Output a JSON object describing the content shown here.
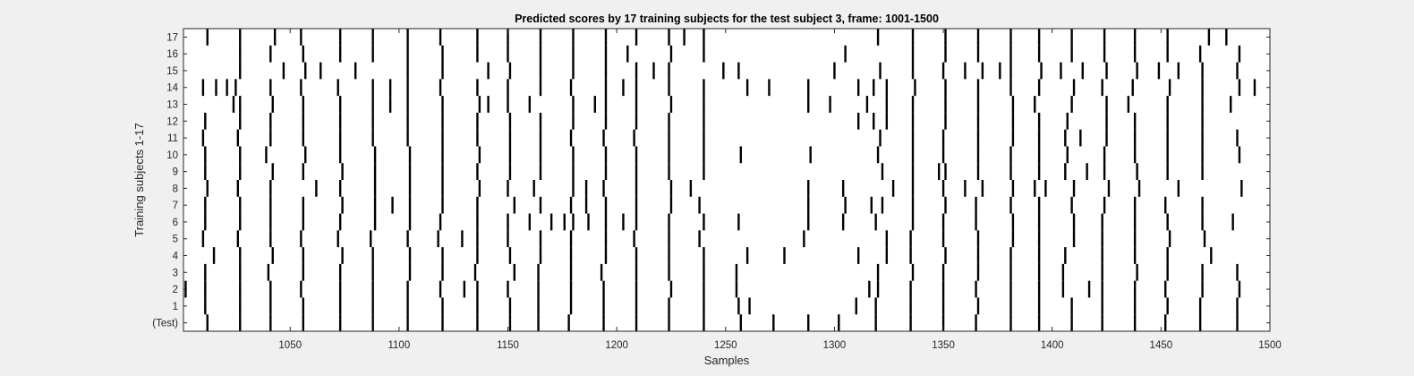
{
  "chart_data": {
    "type": "raster",
    "title": "Predicted scores by 17 training subjects for the test subject 3, frame: 1001-1500",
    "xlabel": "Samples",
    "ylabel": "Training subjects 1-17",
    "xlim": [
      1001,
      1500
    ],
    "x_ticks": [
      1050,
      1100,
      1150,
      1200,
      1250,
      1300,
      1350,
      1400,
      1450,
      1500
    ],
    "y_tick_labels": [
      "(Test)",
      "1",
      "2",
      "3",
      "4",
      "5",
      "6",
      "7",
      "8",
      "9",
      "10",
      "11",
      "12",
      "13",
      "14",
      "15",
      "16",
      "17"
    ],
    "rows": [
      {
        "label": "(Test)",
        "events": [
          1012,
          1027,
          1041,
          1056,
          1073,
          1088,
          1104,
          1120,
          1136,
          1151,
          1164,
          1178,
          1194,
          1209,
          1224,
          1240,
          1257,
          1272,
          1288,
          1302,
          1319,
          1335,
          1350,
          1365,
          1381,
          1394,
          1409,
          1423,
          1438,
          1452,
          1468,
          1485
        ]
      },
      {
        "label": "1",
        "events": [
          1011,
          1027,
          1041,
          1056,
          1073,
          1088,
          1104,
          1120,
          1136,
          1151,
          1164,
          1179,
          1194,
          1209,
          1224,
          1240,
          1256,
          1261,
          1310,
          1319,
          1335,
          1350,
          1366,
          1381,
          1394,
          1409,
          1423,
          1438,
          1453,
          1468,
          1485
        ]
      },
      {
        "label": "2",
        "events": [
          1002,
          1011,
          1027,
          1041,
          1055,
          1073,
          1088,
          1104,
          1119,
          1130,
          1136,
          1150,
          1164,
          1179,
          1194,
          1209,
          1225,
          1240,
          1255,
          1316,
          1320,
          1335,
          1350,
          1365,
          1381,
          1394,
          1405,
          1417,
          1423,
          1438,
          1452,
          1469,
          1486
        ]
      },
      {
        "label": "3",
        "events": [
          1011,
          1027,
          1040,
          1056,
          1073,
          1088,
          1105,
          1120,
          1135,
          1153,
          1164,
          1179,
          1193,
          1209,
          1224,
          1240,
          1255,
          1320,
          1336,
          1350,
          1366,
          1381,
          1394,
          1405,
          1423,
          1439,
          1453,
          1469,
          1485
        ]
      },
      {
        "label": "4",
        "events": [
          1015,
          1027,
          1042,
          1056,
          1074,
          1088,
          1105,
          1120,
          1136,
          1151,
          1165,
          1179,
          1195,
          1209,
          1224,
          1240,
          1260,
          1277,
          1311,
          1324,
          1335,
          1351,
          1366,
          1381,
          1394,
          1406,
          1423,
          1438,
          1453,
          1473
        ]
      },
      {
        "label": "5",
        "events": [
          1010,
          1026,
          1041,
          1055,
          1072,
          1087,
          1104,
          1118,
          1129,
          1136,
          1150,
          1165,
          1179,
          1195,
          1208,
          1224,
          1238,
          1286,
          1324,
          1335,
          1350,
          1366,
          1382,
          1394,
          1410,
          1423,
          1438,
          1454,
          1470
        ]
      },
      {
        "label": "6",
        "events": [
          1011,
          1027,
          1041,
          1056,
          1073,
          1089,
          1105,
          1119,
          1136,
          1150,
          1160,
          1170,
          1176,
          1180,
          1187,
          1195,
          1203,
          1209,
          1224,
          1240,
          1256,
          1288,
          1304,
          1319,
          1336,
          1350,
          1365,
          1382,
          1394,
          1410,
          1423,
          1438,
          1453,
          1469,
          1483
        ]
      },
      {
        "label": "7",
        "events": [
          1011,
          1027,
          1041,
          1056,
          1074,
          1089,
          1097,
          1105,
          1120,
          1136,
          1153,
          1165,
          1179,
          1186,
          1195,
          1209,
          1225,
          1238,
          1288,
          1305,
          1317,
          1322,
          1336,
          1351,
          1365,
          1381,
          1394,
          1409,
          1424,
          1438,
          1452,
          1469
        ]
      },
      {
        "label": "8",
        "events": [
          1012,
          1026,
          1041,
          1062,
          1073,
          1089,
          1105,
          1120,
          1137,
          1150,
          1162,
          1180,
          1186,
          1194,
          1209,
          1225,
          1234,
          1288,
          1304,
          1327,
          1336,
          1350,
          1360,
          1368,
          1382,
          1392,
          1397,
          1410,
          1426,
          1440,
          1458,
          1487
        ]
      },
      {
        "label": "9",
        "events": [
          1011,
          1027,
          1042,
          1056,
          1074,
          1089,
          1105,
          1120,
          1136,
          1151,
          1165,
          1180,
          1195,
          1209,
          1224,
          1240,
          1322,
          1336,
          1348,
          1351,
          1366,
          1381,
          1394,
          1406,
          1416,
          1424,
          1439,
          1453,
          1469
        ]
      },
      {
        "label": "10",
        "events": [
          1011,
          1027,
          1039,
          1057,
          1073,
          1089,
          1105,
          1120,
          1137,
          1151,
          1165,
          1180,
          1195,
          1209,
          1224,
          1240,
          1257,
          1289,
          1320,
          1336,
          1350,
          1366,
          1381,
          1394,
          1407,
          1424,
          1438,
          1453,
          1469,
          1486
        ]
      },
      {
        "label": "11",
        "events": [
          1010,
          1026,
          1041,
          1056,
          1073,
          1088,
          1104,
          1120,
          1136,
          1151,
          1165,
          1179,
          1194,
          1208,
          1224,
          1240,
          1321,
          1336,
          1350,
          1366,
          1382,
          1394,
          1406,
          1413,
          1425,
          1438,
          1453,
          1469,
          1485
        ]
      },
      {
        "label": "12",
        "events": [
          1011,
          1027,
          1041,
          1056,
          1073,
          1088,
          1104,
          1120,
          1136,
          1151,
          1165,
          1180,
          1195,
          1209,
          1224,
          1240,
          1311,
          1318,
          1324,
          1336,
          1351,
          1366,
          1382,
          1394,
          1407,
          1425,
          1438,
          1453,
          1469
        ]
      },
      {
        "label": "13",
        "events": [
          1024,
          1027,
          1042,
          1056,
          1073,
          1088,
          1096,
          1104,
          1120,
          1137,
          1141,
          1150,
          1160,
          1180,
          1190,
          1195,
          1209,
          1225,
          1240,
          1288,
          1298,
          1315,
          1324,
          1336,
          1351,
          1366,
          1382,
          1392,
          1409,
          1425,
          1435,
          1453,
          1469,
          1482
        ]
      },
      {
        "label": "14",
        "events": [
          1010,
          1016,
          1021,
          1025,
          1041,
          1055,
          1072,
          1088,
          1096,
          1104,
          1119,
          1136,
          1150,
          1165,
          1179,
          1195,
          1203,
          1209,
          1224,
          1240,
          1260,
          1270,
          1288,
          1311,
          1318,
          1324,
          1337,
          1351,
          1366,
          1381,
          1394,
          1410,
          1423,
          1437,
          1454,
          1469,
          1486,
          1493
        ]
      },
      {
        "label": "15",
        "events": [
          1027,
          1047,
          1057,
          1064,
          1080,
          1104,
          1120,
          1141,
          1151,
          1165,
          1180,
          1195,
          1209,
          1217,
          1224,
          1249,
          1256,
          1300,
          1321,
          1336,
          1350,
          1360,
          1368,
          1376,
          1381,
          1395,
          1404,
          1414,
          1425,
          1439,
          1449,
          1458,
          1469,
          1485
        ]
      },
      {
        "label": "16",
        "events": [
          1027,
          1041,
          1056,
          1073,
          1088,
          1104,
          1120,
          1136,
          1150,
          1165,
          1180,
          1195,
          1205,
          1225,
          1240,
          1305,
          1336,
          1351,
          1366,
          1381,
          1394,
          1409,
          1424,
          1438,
          1453,
          1468,
          1486
        ]
      },
      {
        "label": "17",
        "events": [
          1012,
          1027,
          1043,
          1055,
          1073,
          1088,
          1104,
          1119,
          1136,
          1150,
          1165,
          1180,
          1195,
          1209,
          1224,
          1231,
          1240,
          1320,
          1336,
          1351,
          1366,
          1381,
          1394,
          1409,
          1424,
          1438,
          1453,
          1472,
          1480
        ]
      }
    ]
  }
}
